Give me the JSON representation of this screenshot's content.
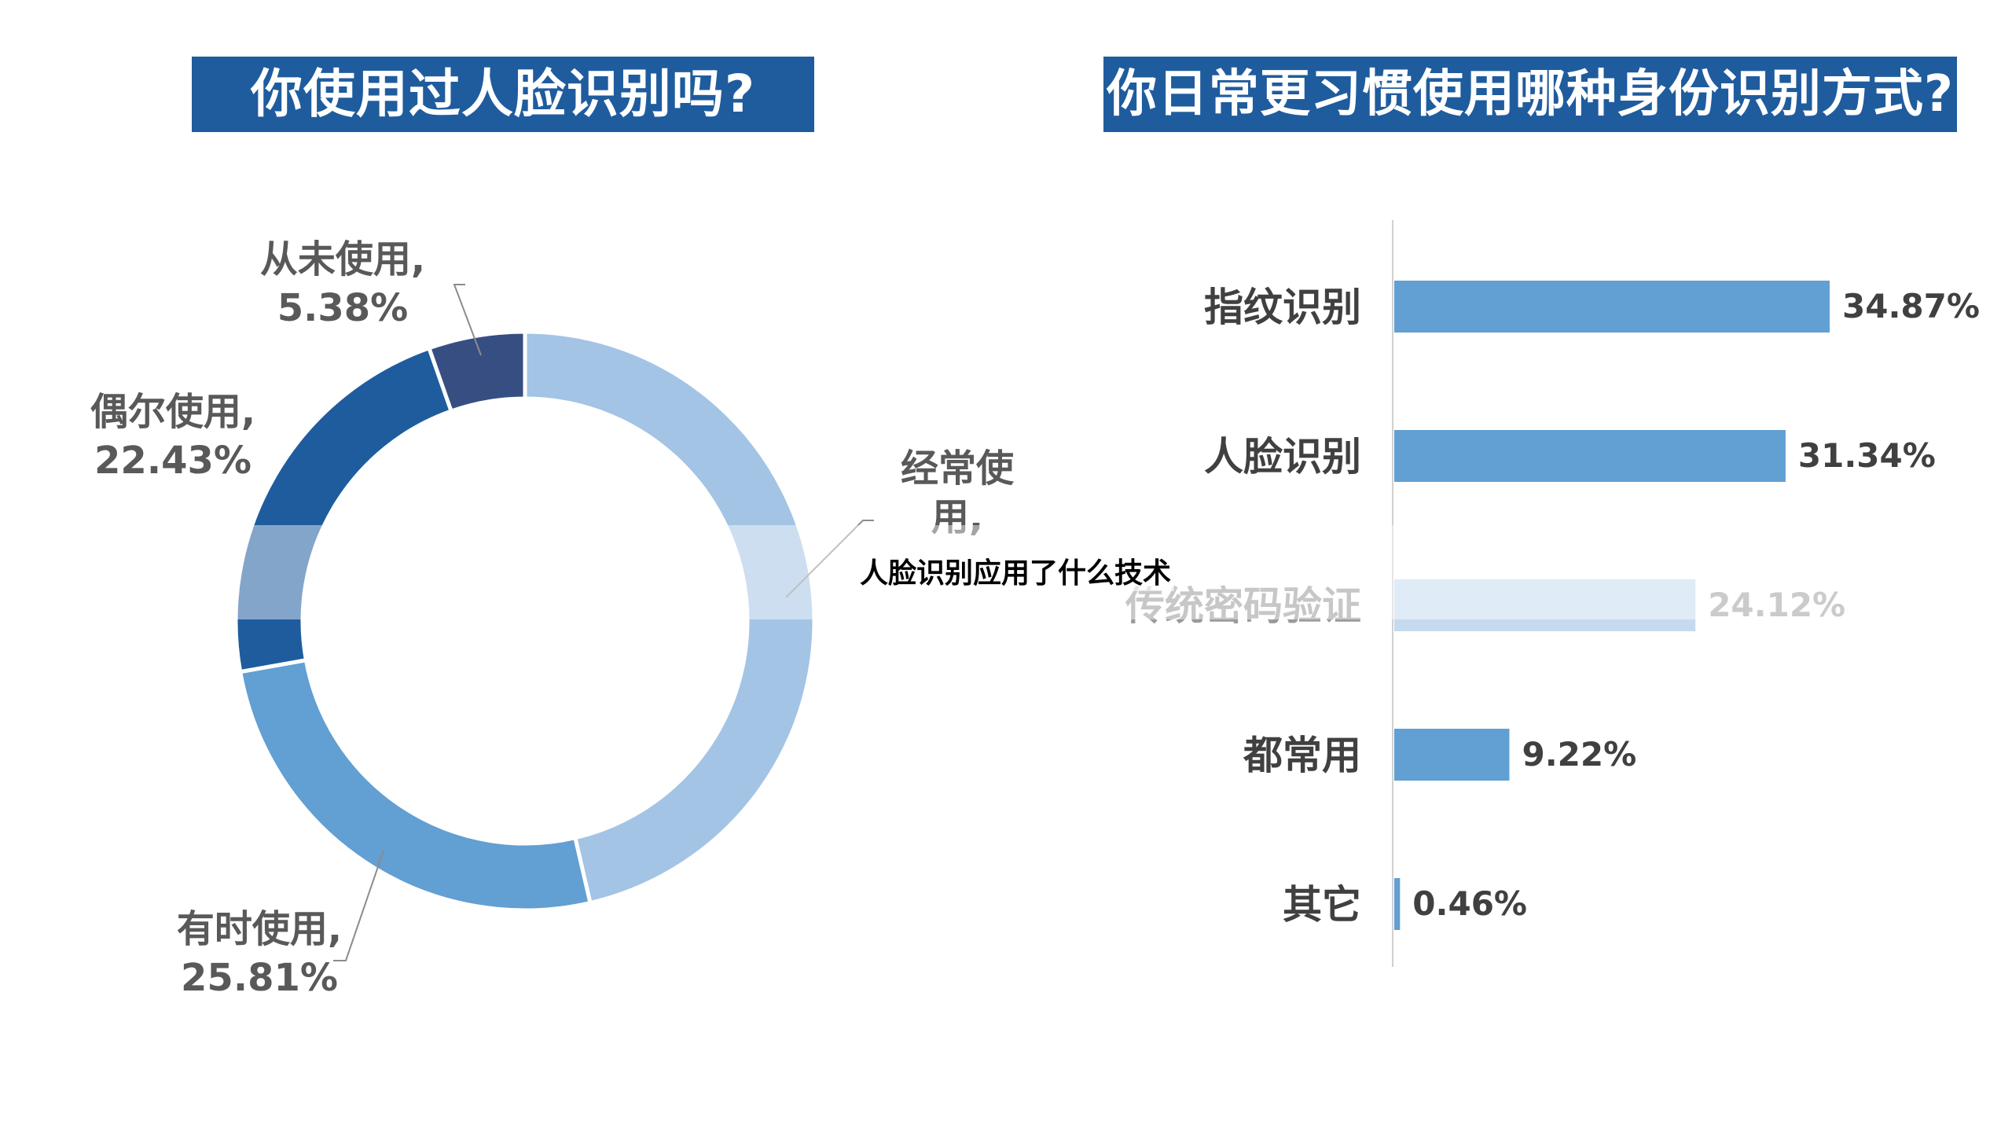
{
  "titles": {
    "left": "你使用过人脸识别吗?",
    "right": "你日常更习惯使用哪种身份识别方式?"
  },
  "overlay_caption": "人脸识别应用了什么技术",
  "chart_data": [
    {
      "type": "pie",
      "title": "你使用过人脸识别吗?",
      "slices": [
        {
          "label": "经常使用",
          "value": 46.38,
          "color": "#a3c4e4",
          "label_text": [
            "经常使",
            "用,"
          ]
        },
        {
          "label": "有时使用",
          "value": 25.81,
          "color": "#629fd2",
          "label_text": [
            "有时使用,",
            "25.81%"
          ]
        },
        {
          "label": "偶尔使用",
          "value": 22.43,
          "color": "#1f5c9e",
          "label_text": [
            "偶尔使用,",
            "22.43%"
          ]
        },
        {
          "label": "从未使用",
          "value": 5.38,
          "color": "#364e82",
          "label_text": [
            "从未使用,",
            "5.38%"
          ]
        }
      ]
    },
    {
      "type": "bar",
      "orientation": "horizontal",
      "title": "你日常更习惯使用哪种身份识别方式?",
      "categories": [
        "指纹识别",
        "人脸识别",
        "传统密码验证",
        "都常用",
        "其它"
      ],
      "values": [
        34.87,
        31.34,
        24.12,
        9.22,
        0.46
      ],
      "value_labels": [
        "34.87%",
        "31.34%",
        "24.12%",
        "9.22%",
        "0.46%"
      ],
      "unit": "%",
      "highlight_index": 2,
      "colors": {
        "bar": "#629fd2",
        "highlight": "#c5daef"
      }
    }
  ]
}
